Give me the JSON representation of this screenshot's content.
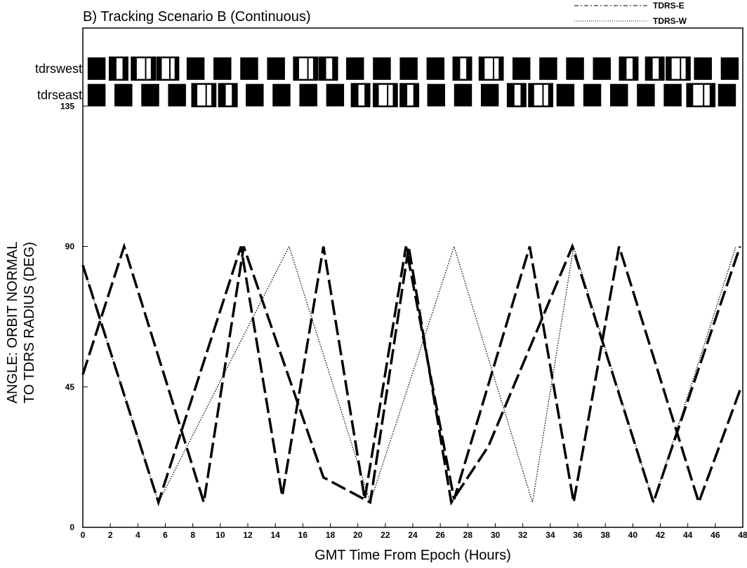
{
  "chart_data": {
    "type": "line",
    "title": "B) Tracking Scenario B (Continuous)",
    "xlabel": "GMT Time From Epoch (Hours)",
    "ylabel_lines": [
      "ANGLE: ORBIT NORMAL",
      "TO TDRS RADIUS (DEG)"
    ],
    "xlim": [
      0,
      48
    ],
    "ylim": [
      0,
      160
    ],
    "x_ticks": [
      "0",
      "2",
      "4",
      "6",
      "8",
      "10",
      "12",
      "14",
      "16",
      "18",
      "20",
      "22",
      "24",
      "26",
      "28",
      "30",
      "32",
      "34",
      "36",
      "38",
      "40",
      "42",
      "44",
      "46",
      "48"
    ],
    "y_ticks": [
      {
        "value": 0,
        "label": "0"
      },
      {
        "value": 45,
        "label": "45"
      },
      {
        "value": 90,
        "label": "90"
      },
      {
        "value": 135,
        "label": "135"
      }
    ],
    "legend": {
      "position": "top-right",
      "entries": [
        {
          "label": "TDRS-E",
          "style": "dash-dot"
        },
        {
          "label": "TDRS-W",
          "style": "dotted"
        }
      ]
    },
    "series": [
      {
        "style": "dashed",
        "x": [
          0,
          3,
          8.8,
          11.7,
          17.5,
          20.9,
          23.7,
          26.8,
          29.5,
          35.6,
          41.5,
          47.8
        ],
        "y": [
          49,
          90,
          8,
          90,
          16,
          8,
          90,
          8,
          26,
          90,
          8,
          90
        ]
      },
      {
        "style": "dashed",
        "x": [
          0,
          5.5,
          11.5,
          14.5,
          17.5,
          20.5,
          23.5,
          27,
          32.5,
          35.7,
          39,
          44.8,
          47.8
        ],
        "y": [
          84,
          8,
          90,
          10,
          90,
          9,
          90,
          9,
          90,
          8,
          90,
          8,
          44
        ]
      },
      {
        "style": "dotted",
        "x": [
          0,
          5.5,
          15,
          20.9,
          27,
          32.7,
          35.7,
          41.5,
          47.5
        ],
        "y": [
          84,
          8,
          90,
          8,
          90,
          8,
          90,
          8,
          90
        ]
      }
    ],
    "tracking_rows": [
      {
        "label": "tdrswest",
        "y_value": 147,
        "blocks": [
          {
            "x0": 0.35,
            "x1": 1.65,
            "fill": "solid"
          },
          {
            "x0": 1.95,
            "x1": 3.25,
            "fill": "split"
          },
          {
            "x0": 3.55,
            "x1": 5.25,
            "fill": "open"
          },
          {
            "x0": 5.4,
            "x1": 6.95,
            "fill": "open"
          },
          {
            "x0": 7.55,
            "x1": 8.85,
            "fill": "solid"
          },
          {
            "x0": 9.5,
            "x1": 10.8,
            "fill": "solid"
          },
          {
            "x0": 11.45,
            "x1": 12.75,
            "fill": "solid"
          },
          {
            "x0": 13.4,
            "x1": 14.7,
            "fill": "solid"
          },
          {
            "x0": 15.35,
            "x1": 17.05,
            "fill": "open"
          },
          {
            "x0": 17.2,
            "x1": 18.5,
            "fill": "split"
          },
          {
            "x0": 19.15,
            "x1": 20.45,
            "fill": "solid"
          },
          {
            "x0": 21.1,
            "x1": 22.4,
            "fill": "solid"
          },
          {
            "x0": 23.05,
            "x1": 24.35,
            "fill": "solid"
          },
          {
            "x0": 25.0,
            "x1": 26.3,
            "fill": "solid"
          },
          {
            "x0": 26.95,
            "x1": 28.25,
            "fill": "split"
          },
          {
            "x0": 28.85,
            "x1": 30.55,
            "fill": "open"
          },
          {
            "x0": 31.25,
            "x1": 32.55,
            "fill": "solid"
          },
          {
            "x0": 33.2,
            "x1": 34.5,
            "fill": "solid"
          },
          {
            "x0": 35.15,
            "x1": 36.45,
            "fill": "solid"
          },
          {
            "x0": 37.1,
            "x1": 38.4,
            "fill": "solid"
          },
          {
            "x0": 39.05,
            "x1": 40.35,
            "fill": "split"
          },
          {
            "x0": 40.95,
            "x1": 42.25,
            "fill": "split"
          },
          {
            "x0": 42.45,
            "x1": 44.15,
            "fill": "open"
          },
          {
            "x0": 44.45,
            "x1": 45.75,
            "fill": "solid"
          },
          {
            "x0": 46.4,
            "x1": 47.7,
            "fill": "solid"
          }
        ]
      },
      {
        "label": "tdrseast",
        "y_value": 138.5,
        "blocks": [
          {
            "x0": 0.35,
            "x1": 1.65,
            "fill": "solid"
          },
          {
            "x0": 2.3,
            "x1": 3.6,
            "fill": "solid"
          },
          {
            "x0": 4.25,
            "x1": 5.55,
            "fill": "solid"
          },
          {
            "x0": 6.2,
            "x1": 7.5,
            "fill": "solid"
          },
          {
            "x0": 7.95,
            "x1": 9.65,
            "fill": "open"
          },
          {
            "x0": 9.9,
            "x1": 11.2,
            "fill": "split"
          },
          {
            "x0": 11.85,
            "x1": 13.15,
            "fill": "solid"
          },
          {
            "x0": 13.8,
            "x1": 15.1,
            "fill": "solid"
          },
          {
            "x0": 15.75,
            "x1": 17.05,
            "fill": "solid"
          },
          {
            "x0": 17.7,
            "x1": 19.0,
            "fill": "solid"
          },
          {
            "x0": 19.55,
            "x1": 20.85,
            "fill": "split"
          },
          {
            "x0": 21.15,
            "x1": 22.85,
            "fill": "open"
          },
          {
            "x0": 23.1,
            "x1": 24.4,
            "fill": "split"
          },
          {
            "x0": 25.05,
            "x1": 26.35,
            "fill": "solid"
          },
          {
            "x0": 27.0,
            "x1": 28.3,
            "fill": "solid"
          },
          {
            "x0": 28.95,
            "x1": 30.25,
            "fill": "solid"
          },
          {
            "x0": 30.9,
            "x1": 32.2,
            "fill": "split"
          },
          {
            "x0": 32.45,
            "x1": 34.15,
            "fill": "open"
          },
          {
            "x0": 34.45,
            "x1": 35.75,
            "fill": "solid"
          },
          {
            "x0": 36.4,
            "x1": 37.7,
            "fill": "solid"
          },
          {
            "x0": 38.35,
            "x1": 39.65,
            "fill": "solid"
          },
          {
            "x0": 40.3,
            "x1": 41.6,
            "fill": "solid"
          },
          {
            "x0": 42.25,
            "x1": 43.55,
            "fill": "solid"
          },
          {
            "x0": 43.95,
            "x1": 45.95,
            "fill": "open"
          },
          {
            "x0": 46.2,
            "x1": 47.5,
            "fill": "solid"
          }
        ]
      }
    ]
  }
}
